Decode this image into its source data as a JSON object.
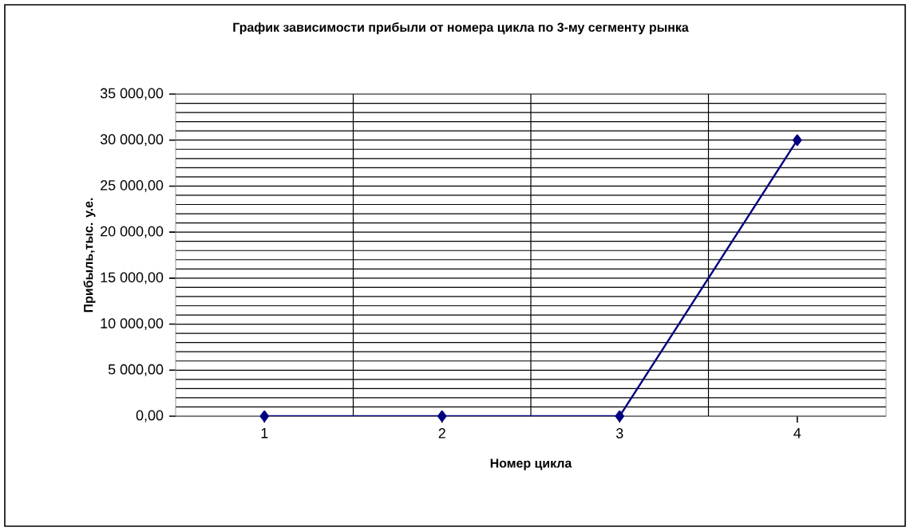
{
  "chart_data": {
    "type": "line",
    "title": "График зависимости прибыли от номера цикла по 3-му сегменту рынка",
    "xlabel": "Номер цикла",
    "ylabel": "Прибыль,тыс. у.е.",
    "categories": [
      "1",
      "2",
      "3",
      "4"
    ],
    "series": [
      {
        "color": "#000080",
        "values": [
          0,
          0,
          0,
          30000
        ]
      }
    ],
    "ylim": [
      0,
      35000
    ],
    "yticks": [
      {
        "value": 0,
        "label": "0,00"
      },
      {
        "value": 5000,
        "label": "5 000,00"
      },
      {
        "value": 10000,
        "label": "10 000,00"
      },
      {
        "value": 15000,
        "label": "15 000,00"
      },
      {
        "value": 20000,
        "label": "20 000,00"
      },
      {
        "value": 25000,
        "label": "25 000,00"
      },
      {
        "value": 30000,
        "label": "30 000,00"
      },
      {
        "value": 35000,
        "label": "35 000,00"
      }
    ],
    "grid": true,
    "legend": false,
    "marker": "diamond",
    "line_style": "solid"
  }
}
